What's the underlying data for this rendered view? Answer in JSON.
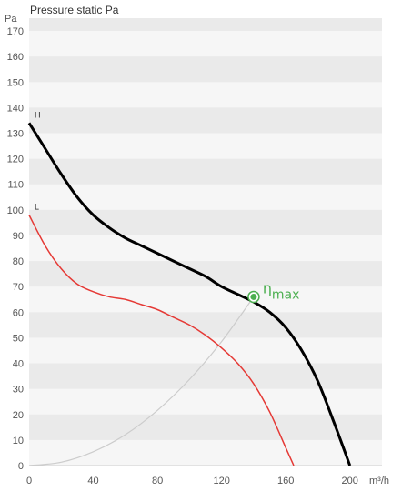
{
  "chart_data": {
    "type": "line",
    "title": "Pressure static Pa",
    "ylabel": "Pa",
    "xlabel": "m³/h",
    "xlim": [
      0,
      220
    ],
    "ylim": [
      0,
      175
    ],
    "xticks": [
      0,
      40,
      80,
      120,
      160,
      200
    ],
    "yticks": [
      0,
      10,
      20,
      30,
      40,
      50,
      60,
      70,
      80,
      90,
      100,
      110,
      120,
      130,
      140,
      150,
      160,
      170
    ],
    "grid": "horizontal alternating bands",
    "series": [
      {
        "name": "H",
        "color": "#000000",
        "x": [
          0,
          10,
          20,
          30,
          40,
          50,
          60,
          70,
          80,
          90,
          100,
          110,
          120,
          130,
          140,
          150,
          160,
          170,
          180,
          190,
          200
        ],
        "y": [
          134,
          124,
          114,
          105,
          98,
          93,
          89,
          86,
          83,
          80,
          77,
          74,
          70,
          67,
          64,
          60,
          54,
          45,
          33,
          17,
          0
        ]
      },
      {
        "name": "L",
        "color": "#e53935",
        "x": [
          0,
          10,
          20,
          30,
          40,
          50,
          60,
          70,
          80,
          90,
          100,
          110,
          120,
          130,
          140,
          150,
          160,
          165
        ],
        "y": [
          98,
          86,
          77,
          71,
          68,
          66,
          65,
          63,
          61,
          58,
          55,
          51,
          46,
          40,
          32,
          21,
          7,
          0
        ]
      },
      {
        "name": "",
        "color": "#cccccc",
        "x": [
          0,
          20,
          40,
          60,
          80,
          100,
          120,
          140
        ],
        "y": [
          0,
          1.3,
          5.4,
          12.1,
          21.6,
          33.7,
          48.5,
          66
        ]
      }
    ],
    "annotations": [
      {
        "text": "η",
        "sub": "max",
        "x": 140,
        "y": 66,
        "color": "#4caf50"
      }
    ]
  }
}
